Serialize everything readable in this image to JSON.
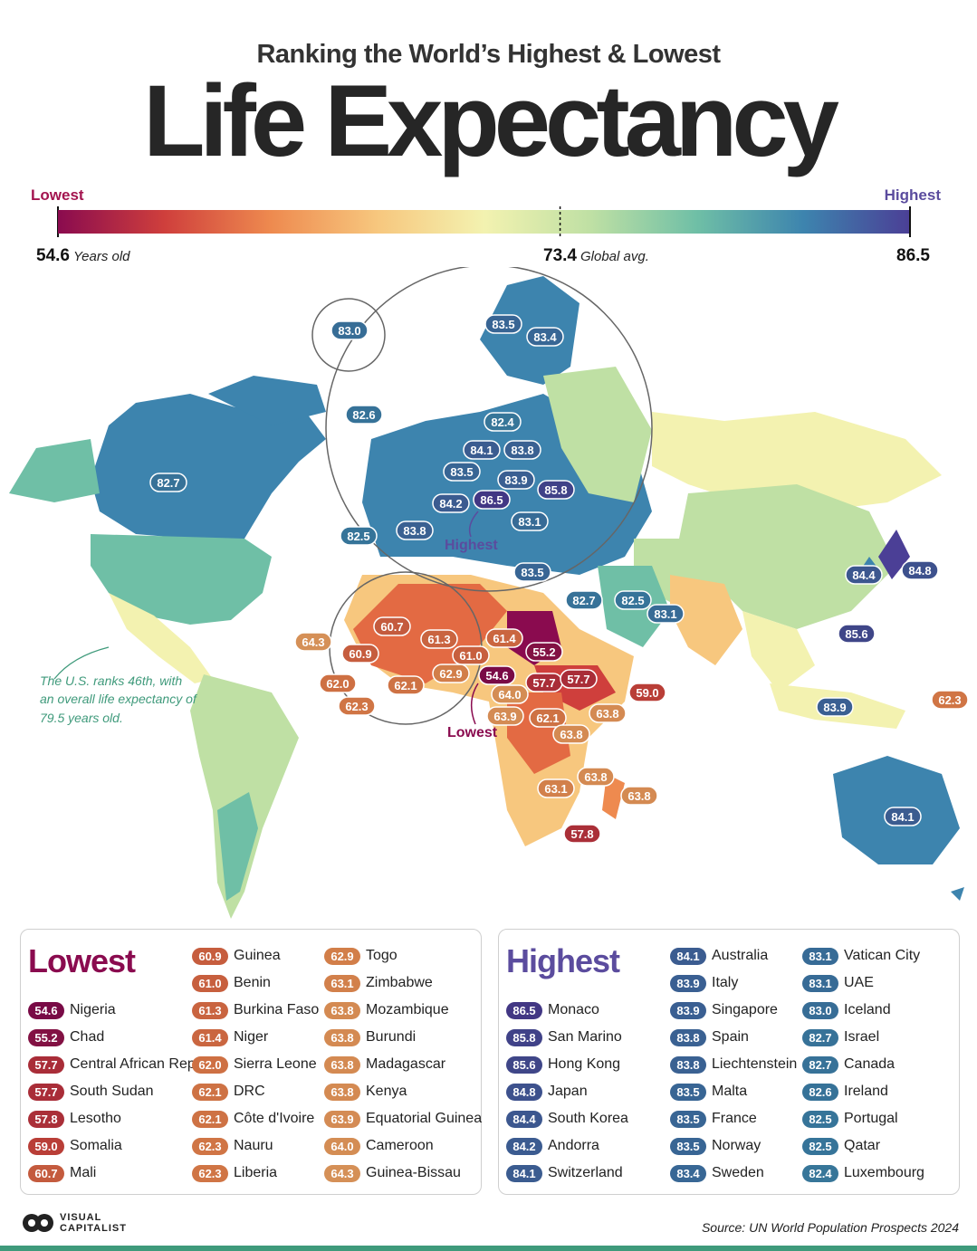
{
  "header": {
    "subtitle": "Ranking the World’s Highest & Lowest",
    "title": "Life Expectancy"
  },
  "scale": {
    "lowest_label": "Lowest",
    "highest_label": "Highest",
    "min_value": "54.6",
    "min_unit": "Years old",
    "avg_value": "73.4",
    "avg_unit": "Global avg.",
    "max_value": "86.5",
    "colors": [
      "#8a0b4f",
      "#cf3f3c",
      "#ee8a4f",
      "#f7c77e",
      "#f3f2b0",
      "#bfe0a4",
      "#6fbfa6",
      "#3d84ae",
      "#4b3f96"
    ]
  },
  "map": {
    "annotation": "The U.S. ranks 46th, with an overall life expectancy of 79.5 years old.",
    "highest_callout": "Highest",
    "lowest_callout": "Lowest",
    "value_labels": [
      "83.0",
      "83.5",
      "83.4",
      "82.6",
      "82.4",
      "84.1",
      "83.8",
      "83.5",
      "83.9",
      "85.8",
      "84.2",
      "86.5",
      "83.1",
      "82.5",
      "83.8",
      "83.5",
      "82.7",
      "82.7",
      "82.5",
      "83.1",
      "84.4",
      "84.8",
      "85.6",
      "83.9",
      "62.3",
      "84.1",
      "64.3",
      "60.7",
      "61.3",
      "61.4",
      "60.9",
      "61.0",
      "55.2",
      "62.9",
      "54.6",
      "57.7",
      "57.7",
      "59.0",
      "62.0",
      "62.1",
      "64.0",
      "62.3",
      "63.9",
      "62.1",
      "63.8",
      "63.8",
      "63.8",
      "63.1",
      "63.8",
      "57.8"
    ]
  },
  "chart_data": {
    "type": "table",
    "title": "Ranking the World’s Highest & Lowest Life Expectancy",
    "scale_min": 54.6,
    "global_average": 73.4,
    "scale_max": 86.5,
    "lowest_title": "Lowest",
    "highest_title": "Highest",
    "lowest": [
      {
        "country": "Nigeria",
        "value": "54.6"
      },
      {
        "country": "Chad",
        "value": "55.2"
      },
      {
        "country": "Central African Rep",
        "value": "57.7"
      },
      {
        "country": "South Sudan",
        "value": "57.7"
      },
      {
        "country": "Lesotho",
        "value": "57.8"
      },
      {
        "country": "Somalia",
        "value": "59.0"
      },
      {
        "country": "Mali",
        "value": "60.7"
      },
      {
        "country": "Guinea",
        "value": "60.9"
      },
      {
        "country": "Benin",
        "value": "61.0"
      },
      {
        "country": "Burkina Faso",
        "value": "61.3"
      },
      {
        "country": "Niger",
        "value": "61.4"
      },
      {
        "country": "Sierra Leone",
        "value": "62.0"
      },
      {
        "country": "DRC",
        "value": "62.1"
      },
      {
        "country": "Côte d'Ivoire",
        "value": "62.1"
      },
      {
        "country": "Nauru",
        "value": "62.3"
      },
      {
        "country": "Liberia",
        "value": "62.3"
      },
      {
        "country": "Togo",
        "value": "62.9"
      },
      {
        "country": "Zimbabwe",
        "value": "63.1"
      },
      {
        "country": "Mozambique",
        "value": "63.8"
      },
      {
        "country": "Burundi",
        "value": "63.8"
      },
      {
        "country": "Madagascar",
        "value": "63.8"
      },
      {
        "country": "Kenya",
        "value": "63.8"
      },
      {
        "country": "Equatorial Guinea",
        "value": "63.9"
      },
      {
        "country": "Cameroon",
        "value": "64.0"
      },
      {
        "country": "Guinea-Bissau",
        "value": "64.3"
      }
    ],
    "highest": [
      {
        "country": "Monaco",
        "value": "86.5"
      },
      {
        "country": "San Marino",
        "value": "85.8"
      },
      {
        "country": "Hong Kong",
        "value": "85.6"
      },
      {
        "country": "Japan",
        "value": "84.8"
      },
      {
        "country": "South Korea",
        "value": "84.4"
      },
      {
        "country": "Andorra",
        "value": "84.2"
      },
      {
        "country": "Switzerland",
        "value": "84.1"
      },
      {
        "country": "Australia",
        "value": "84.1"
      },
      {
        "country": "Italy",
        "value": "83.9"
      },
      {
        "country": "Singapore",
        "value": "83.9"
      },
      {
        "country": "Spain",
        "value": "83.8"
      },
      {
        "country": "Liechtenstein",
        "value": "83.8"
      },
      {
        "country": "Malta",
        "value": "83.5"
      },
      {
        "country": "France",
        "value": "83.5"
      },
      {
        "country": "Norway",
        "value": "83.5"
      },
      {
        "country": "Sweden",
        "value": "83.4"
      },
      {
        "country": "Vatican City",
        "value": "83.1"
      },
      {
        "country": "UAE",
        "value": "83.1"
      },
      {
        "country": "Iceland",
        "value": "83.0"
      },
      {
        "country": "Israel",
        "value": "82.7"
      },
      {
        "country": "Canada",
        "value": "82.7"
      },
      {
        "country": "Ireland",
        "value": "82.6"
      },
      {
        "country": "Portugal",
        "value": "82.5"
      },
      {
        "country": "Qatar",
        "value": "82.5"
      },
      {
        "country": "Luxembourg",
        "value": "82.4"
      }
    ]
  },
  "footer": {
    "logo_line1": "VISUAL",
    "logo_line2": "CAPITALIST",
    "source": "Source: UN World Population Prospects 2024"
  }
}
